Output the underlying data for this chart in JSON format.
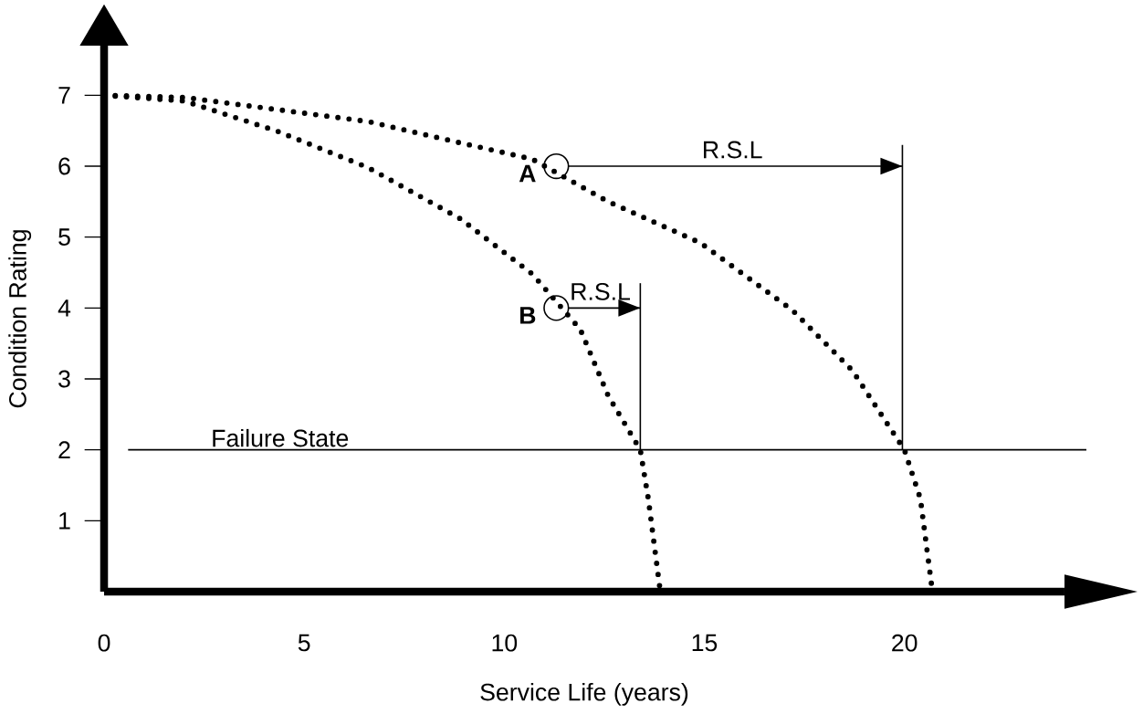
{
  "chart_data": {
    "type": "line",
    "xlabel": "Service Life (years)",
    "ylabel": "Condition Rating",
    "xlim": [
      0,
      24
    ],
    "ylim": [
      0,
      7.7
    ],
    "xticks": [
      0,
      5,
      10,
      15,
      20
    ],
    "yticks": [
      1,
      2,
      3,
      4,
      5,
      6,
      7
    ],
    "grid": false,
    "series": [
      {
        "type": "line",
        "line_style": "dotted",
        "color": "#000000",
        "x": [
          0,
          2,
          4.3,
          6.6,
          8.9,
          10.7,
          12.6,
          14.9,
          17.2,
          18.7,
          20,
          20.4,
          20.7
        ],
        "values": [
          7,
          6.97,
          6.8,
          6.63,
          6.33,
          6.1,
          5.5,
          4.92,
          3.97,
          3.12,
          2,
          1.31,
          0
        ]
      },
      {
        "type": "line",
        "line_style": "dotted",
        "color": "#000000",
        "x": [
          0,
          2,
          4.3,
          6.6,
          8.9,
          10.7,
          11.9,
          12.6,
          13.4,
          13.6,
          13.9
        ],
        "values": [
          7,
          6.92,
          6.5,
          5.98,
          5.26,
          4.48,
          3.7,
          2.76,
          2,
          1.31,
          0
        ]
      },
      {
        "type": "line",
        "line_style": "solid",
        "color": "#000000",
        "x": [
          11.6,
          19.95
        ],
        "values": [
          6,
          6
        ]
      },
      {
        "type": "line",
        "line_style": "solid",
        "color": "#000000",
        "x": [
          19.95,
          19.95
        ],
        "values": [
          2,
          6.3
        ]
      },
      {
        "type": "line",
        "line_style": "solid",
        "color": "#000000",
        "x": [
          11.6,
          13.4
        ],
        "values": [
          4,
          4
        ]
      },
      {
        "type": "line",
        "line_style": "solid",
        "color": "#000000",
        "x": [
          13.4,
          13.4
        ],
        "values": [
          2,
          4.35
        ]
      },
      {
        "type": "scatter",
        "marker": "circle",
        "color": "#000000",
        "x": [
          11.3,
          11.3
        ],
        "values": [
          6,
          4
        ]
      }
    ],
    "ref_lines": [
      {
        "axis": "y",
        "value": 2,
        "label": "Failure State",
        "color": "#000000"
      }
    ],
    "annotations": [
      {
        "text": "**A**",
        "x": 11.3,
        "y": 6
      },
      {
        "text": "**B**",
        "x": 11.3,
        "y": 4
      },
      {
        "text": "R.S.L",
        "x": 15.7,
        "y": 6
      },
      {
        "text": "R.S.L",
        "x": 12.4,
        "y": 4
      }
    ]
  }
}
